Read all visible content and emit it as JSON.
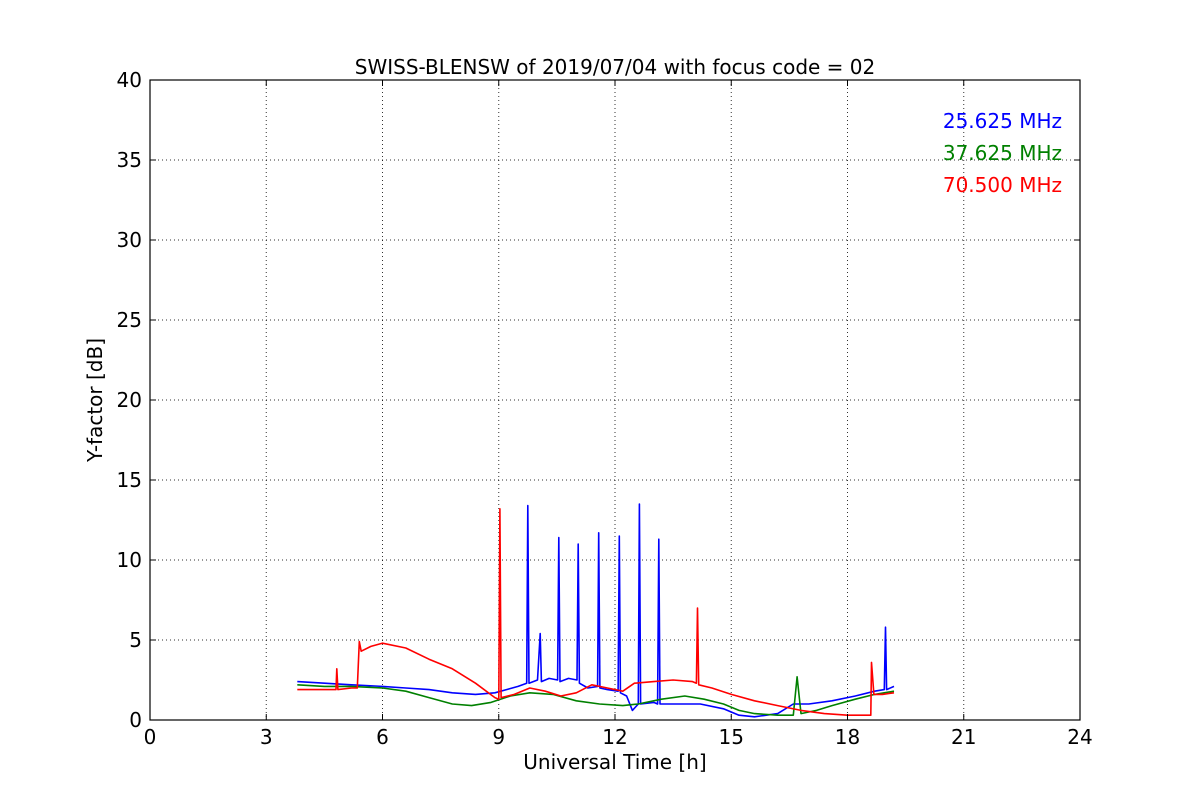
{
  "chart_data": {
    "type": "line",
    "title": "SWISS-BLENSW of 2019/07/04 with focus code = 02",
    "xlabel": "Universal Time [h]",
    "ylabel": "Y-factor [dB]",
    "xlim": [
      0,
      24
    ],
    "ylim": [
      0,
      40
    ],
    "xticks": [
      0,
      3,
      6,
      9,
      12,
      15,
      18,
      21,
      24
    ],
    "yticks": [
      0,
      5,
      10,
      15,
      20,
      25,
      30,
      35,
      40
    ],
    "grid": true,
    "legend_position": "top-right",
    "series": [
      {
        "name": "25.625 MHz",
        "color": "#0000ff",
        "x": [
          3.8,
          4.5,
          5.2,
          6.0,
          6.6,
          7.2,
          7.8,
          8.4,
          8.9,
          9.2,
          9.5,
          9.72,
          9.75,
          9.78,
          10.0,
          10.07,
          10.1,
          10.3,
          10.52,
          10.55,
          10.58,
          10.8,
          11.02,
          11.05,
          11.08,
          11.3,
          11.55,
          11.58,
          11.61,
          11.8,
          12.08,
          12.11,
          12.14,
          12.3,
          12.45,
          12.6,
          12.63,
          12.66,
          13.0,
          13.1,
          13.13,
          13.16,
          13.6,
          14.2,
          14.8,
          15.2,
          15.6,
          16.2,
          16.6,
          17.0,
          17.6,
          18.2,
          18.7,
          18.95,
          18.98,
          19.01,
          19.2
        ],
        "y": [
          2.4,
          2.3,
          2.2,
          2.1,
          2.0,
          1.9,
          1.7,
          1.6,
          1.7,
          1.9,
          2.1,
          2.3,
          13.4,
          2.3,
          2.5,
          5.4,
          2.4,
          2.6,
          2.5,
          11.4,
          2.4,
          2.6,
          2.5,
          11.0,
          2.3,
          2.0,
          2.1,
          11.7,
          2.0,
          1.9,
          1.8,
          11.5,
          1.7,
          1.5,
          0.6,
          1.0,
          13.5,
          1.0,
          1.1,
          1.0,
          11.3,
          1.0,
          1.0,
          1.0,
          0.7,
          0.3,
          0.2,
          0.4,
          1.0,
          1.0,
          1.2,
          1.5,
          1.8,
          1.9,
          5.8,
          1.9,
          2.1
        ]
      },
      {
        "name": "37.625 MHz",
        "color": "#008000",
        "x": [
          3.8,
          4.5,
          5.2,
          6.0,
          6.6,
          7.2,
          7.8,
          8.3,
          8.8,
          9.3,
          9.8,
          10.4,
          11.0,
          11.6,
          12.2,
          12.6,
          13.2,
          13.8,
          14.3,
          14.8,
          15.2,
          15.6,
          16.2,
          16.6,
          16.7,
          16.8,
          17.2,
          17.6,
          18.2,
          18.7,
          19.2
        ],
        "y": [
          2.2,
          2.1,
          2.1,
          2.0,
          1.8,
          1.4,
          1.0,
          0.9,
          1.1,
          1.5,
          1.7,
          1.6,
          1.2,
          1.0,
          0.9,
          1.0,
          1.3,
          1.5,
          1.3,
          1.0,
          0.6,
          0.4,
          0.3,
          0.3,
          2.7,
          0.4,
          0.6,
          0.9,
          1.3,
          1.6,
          1.8
        ]
      },
      {
        "name": "70.500 MHz",
        "color": "#ff0000",
        "x": [
          3.8,
          4.5,
          4.8,
          4.82,
          4.85,
          5.2,
          5.35,
          5.4,
          5.45,
          5.7,
          6.0,
          6.6,
          7.2,
          7.8,
          8.4,
          8.9,
          9.0,
          9.03,
          9.06,
          9.4,
          9.8,
          10.2,
          10.6,
          11.0,
          11.4,
          11.8,
          12.2,
          12.5,
          13.0,
          13.5,
          14.0,
          14.1,
          14.13,
          14.16,
          14.5,
          15.0,
          15.6,
          16.2,
          16.8,
          17.4,
          18.0,
          18.4,
          18.5,
          18.6,
          18.62,
          18.68,
          18.9,
          19.2
        ],
        "y": [
          1.9,
          1.9,
          1.9,
          3.2,
          1.9,
          2.0,
          2.0,
          4.9,
          4.3,
          4.6,
          4.8,
          4.5,
          3.8,
          3.2,
          2.3,
          1.4,
          1.3,
          13.2,
          1.4,
          1.6,
          2.0,
          1.8,
          1.5,
          1.7,
          2.2,
          2.0,
          1.8,
          2.3,
          2.4,
          2.5,
          2.4,
          2.3,
          7.0,
          2.2,
          2.0,
          1.6,
          1.2,
          0.9,
          0.6,
          0.4,
          0.3,
          0.3,
          0.3,
          0.3,
          3.6,
          1.6,
          1.6,
          1.7
        ]
      }
    ]
  }
}
